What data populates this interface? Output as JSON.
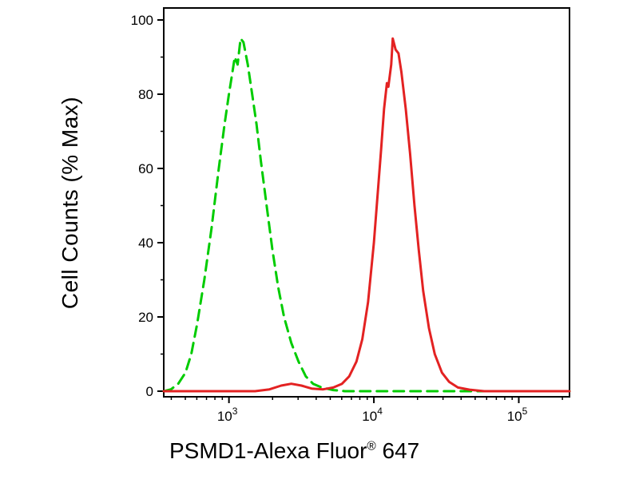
{
  "figure": {
    "background": "#ffffff",
    "axis_color": "#000000",
    "text_color": "#000000"
  },
  "chart_data": {
    "type": "line",
    "subtype": "flow-cytometry-overlay-histogram",
    "title": "",
    "ylabel": "Cell Counts (% Max)",
    "xlabel_main": "PSMD1-Alexa Fluor",
    "xlabel_sup": "®",
    "xlabel_suffix": " 647",
    "x_scale": "log10",
    "x_log_range": [
      2.55,
      5.35
    ],
    "ylim": [
      0,
      100
    ],
    "grid": false,
    "legend": "none",
    "x_major_ticks": [
      {
        "log": 3,
        "base": "10",
        "exp": "3"
      },
      {
        "log": 4,
        "base": "10",
        "exp": "4"
      },
      {
        "log": 5,
        "base": "10",
        "exp": "5"
      }
    ],
    "y_major_ticks": [
      0,
      20,
      40,
      60,
      80,
      100
    ],
    "y_minor_ticks": [
      10,
      30,
      50,
      70,
      90
    ],
    "series": [
      {
        "name": "green-dashed-control",
        "description": "negative control, dashed green, peak ~95% at ~1.2e3",
        "color": "#00cc00",
        "style": "dashed",
        "dash": [
          13,
          8
        ],
        "width": 3,
        "points": [
          [
            2.55,
            0
          ],
          [
            2.6,
            0.5
          ],
          [
            2.65,
            2
          ],
          [
            2.7,
            5
          ],
          [
            2.74,
            10
          ],
          [
            2.78,
            18
          ],
          [
            2.83,
            30
          ],
          [
            2.88,
            44
          ],
          [
            2.93,
            60
          ],
          [
            2.97,
            72
          ],
          [
            3.0,
            80
          ],
          [
            3.02,
            85
          ],
          [
            3.04,
            90
          ],
          [
            3.06,
            88
          ],
          [
            3.08,
            95
          ],
          [
            3.1,
            94
          ],
          [
            3.13,
            88
          ],
          [
            3.16,
            80
          ],
          [
            3.19,
            72
          ],
          [
            3.22,
            62
          ],
          [
            3.26,
            50
          ],
          [
            3.3,
            38
          ],
          [
            3.34,
            28
          ],
          [
            3.38,
            20
          ],
          [
            3.43,
            13
          ],
          [
            3.48,
            8
          ],
          [
            3.53,
            4
          ],
          [
            3.58,
            2
          ],
          [
            3.64,
            1
          ],
          [
            3.72,
            0.3
          ],
          [
            3.8,
            0
          ],
          [
            5.35,
            0
          ]
        ]
      },
      {
        "name": "red-solid-psmd1",
        "description": "PSMD1-Alexa Fluor 647 stained, solid red, peak ~95% at ~1.3e4",
        "color": "#e32222",
        "style": "solid",
        "dash": [],
        "width": 3,
        "points": [
          [
            2.55,
            0
          ],
          [
            3.18,
            0
          ],
          [
            3.28,
            0.5
          ],
          [
            3.36,
            1.5
          ],
          [
            3.43,
            2
          ],
          [
            3.5,
            1.5
          ],
          [
            3.57,
            0.7
          ],
          [
            3.65,
            0.5
          ],
          [
            3.72,
            1
          ],
          [
            3.78,
            2
          ],
          [
            3.83,
            4
          ],
          [
            3.88,
            8
          ],
          [
            3.92,
            14
          ],
          [
            3.96,
            24
          ],
          [
            4.0,
            40
          ],
          [
            4.03,
            55
          ],
          [
            4.05,
            65
          ],
          [
            4.07,
            76
          ],
          [
            4.09,
            83
          ],
          [
            4.1,
            82
          ],
          [
            4.12,
            88
          ],
          [
            4.13,
            95
          ],
          [
            4.15,
            92
          ],
          [
            4.17,
            91
          ],
          [
            4.19,
            86
          ],
          [
            4.22,
            76
          ],
          [
            4.25,
            64
          ],
          [
            4.28,
            50
          ],
          [
            4.31,
            38
          ],
          [
            4.34,
            27
          ],
          [
            4.38,
            17
          ],
          [
            4.42,
            10
          ],
          [
            4.47,
            5
          ],
          [
            4.52,
            2.5
          ],
          [
            4.58,
            1
          ],
          [
            4.66,
            0.4
          ],
          [
            4.76,
            0
          ],
          [
            5.35,
            0
          ]
        ]
      }
    ]
  }
}
